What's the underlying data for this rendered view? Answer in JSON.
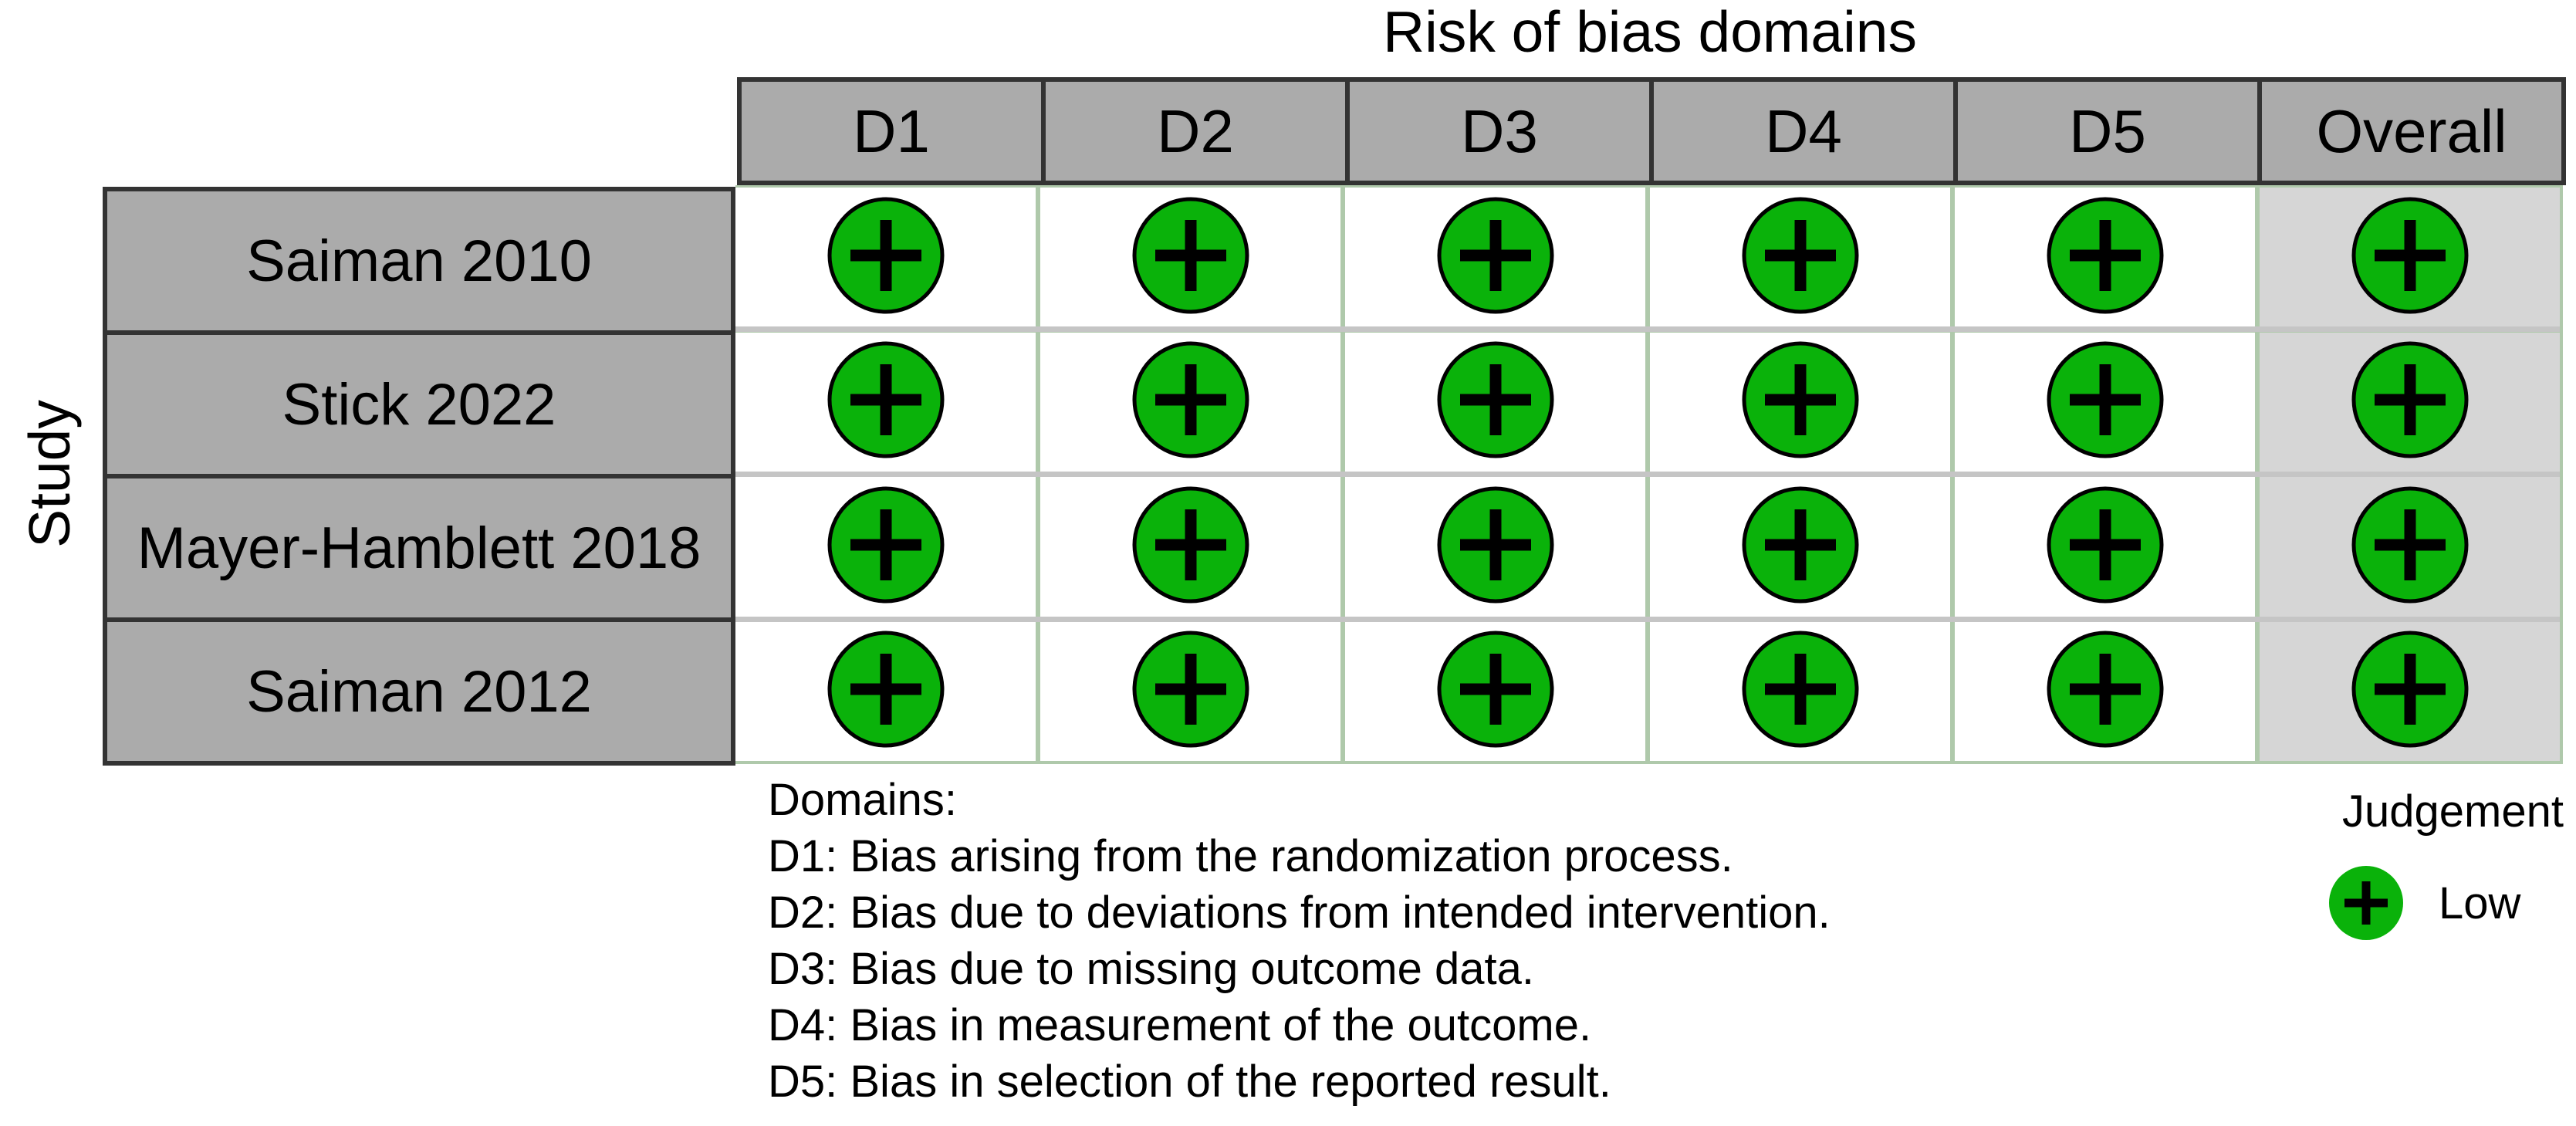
{
  "title": "Risk of bias domains",
  "chart_data": {
    "type": "table",
    "subtype": "risk-of-bias-traffic-light-plot",
    "title": "Risk of bias domains",
    "ylabel": "Study",
    "columns": [
      "D1",
      "D2",
      "D3",
      "D4",
      "D5",
      "Overall"
    ],
    "rows": [
      {
        "study": "Saiman 2010",
        "judgements": [
          "Low",
          "Low",
          "Low",
          "Low",
          "Low",
          "Low"
        ]
      },
      {
        "study": "Stick 2022",
        "judgements": [
          "Low",
          "Low",
          "Low",
          "Low",
          "Low",
          "Low"
        ]
      },
      {
        "study": "Mayer-Hamblett 2018",
        "judgements": [
          "Low",
          "Low",
          "Low",
          "Low",
          "Low",
          "Low"
        ]
      },
      {
        "study": "Saiman 2012",
        "judgements": [
          "Low",
          "Low",
          "Low",
          "Low",
          "Low",
          "Low"
        ]
      }
    ],
    "judgement_symbols": {
      "Low": "+"
    },
    "legend_position": "bottom-right",
    "grid": true
  },
  "legend": {
    "title": "Judgement",
    "items": [
      {
        "symbol": "+",
        "label": "Low"
      }
    ]
  },
  "footnotes": {
    "heading": "Domains:",
    "lines": [
      "D1: Bias arising from the randomization process.",
      "D2: Bias due to deviations from intended intervention.",
      "D3: Bias due to missing outcome data.",
      "D4: Bias in measurement of the outcome.",
      "D5: Bias in selection of the reported result."
    ]
  },
  "colors": {
    "low_risk_green": "#0AB20A",
    "symbol_black": "#000000",
    "header_fill": "#ABABAB",
    "header_border": "#333333",
    "cell_fill": "#FFFFFF",
    "overall_column_fill": "#D6D6D6",
    "grid_line_green": "#AFC9AB",
    "grid_line_gray": "#C5C5C5"
  }
}
